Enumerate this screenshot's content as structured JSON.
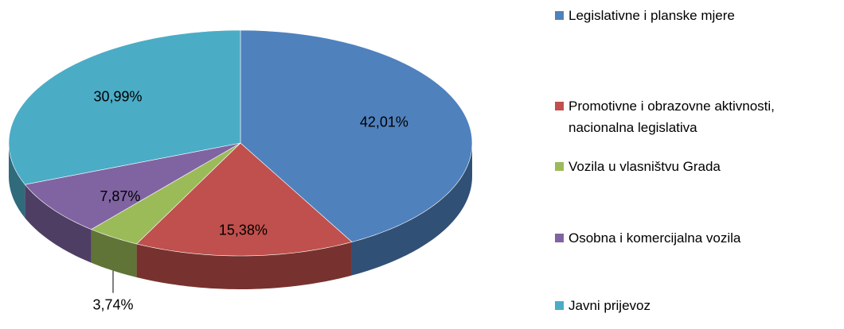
{
  "chart_data": {
    "type": "pie3d",
    "categories": [
      "Legislativne i planske mjere",
      "Promotivne i obrazovne aktivnosti, nacionalna legislativa",
      "Vozila u vlasništvu Grada",
      "Osobna i komercijalna vozila",
      "Javni prijevoz"
    ],
    "values": [
      42.01,
      15.38,
      3.74,
      7.87,
      30.99
    ],
    "value_labels": [
      "42,01%",
      "15,38%",
      "3,74%",
      "7,87%",
      "30,99%"
    ],
    "colors": [
      "#4f81bd",
      "#c0504d",
      "#9bbb59",
      "#8064a2",
      "#4bacc6"
    ],
    "legend": "right"
  }
}
